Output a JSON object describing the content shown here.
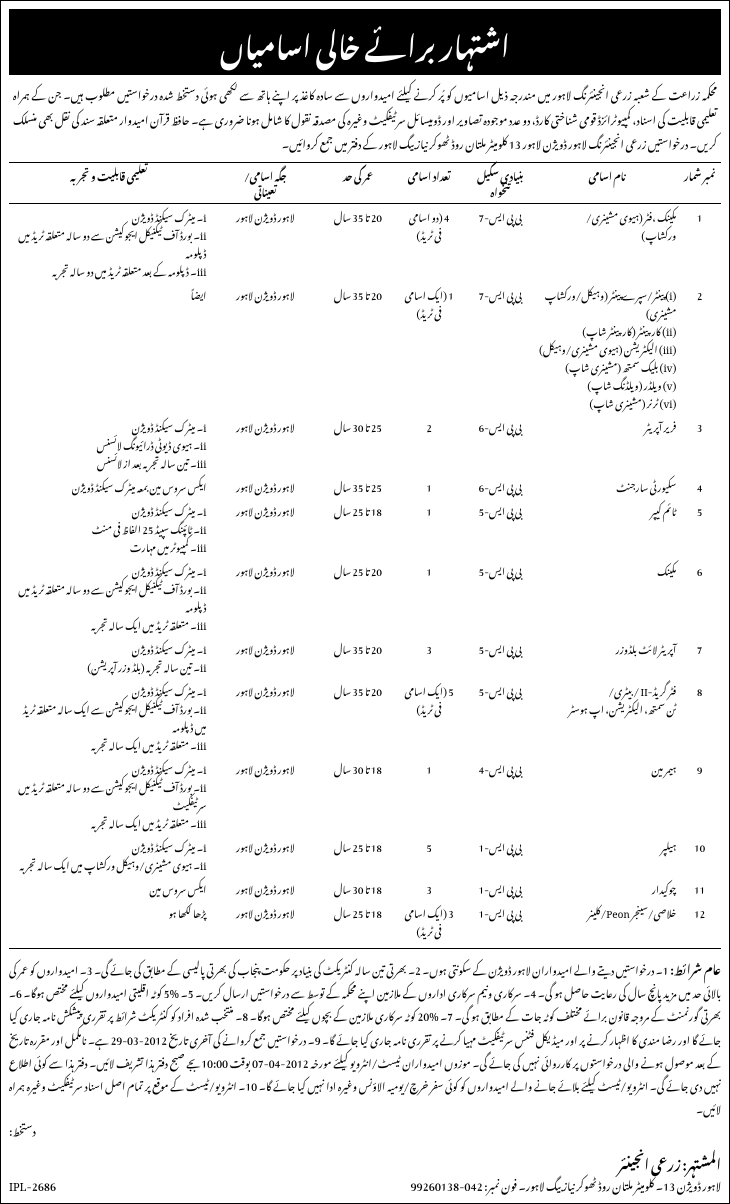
{
  "header_title": "اشتہار برائے خالی اسامیاں",
  "intro_text": "محکمہ زراعت کے شعبہ زرعی انجینئرنگ لاہور میں مندرجہ ذیل اسامیوں کو پُر کرنے کیلئے امیدواروں سے سادہ کاغذ پر اپنے ہاتھ سے لکھی ہوئی دستخط شدہ درخواستیں مطلوب ہیں۔ جن کے ہمراہ تعلیمی قابلیت کی اسناد، کمپیوٹرائزڈ قومی شناختی کارڈ، دو عدد موجودہ تصاویر اور ڈومیسائل سرٹیفکیٹ وغیرہ کی مصدقہ نقول کا شامل ہونا ضروری ہے۔ حافظ قرآن امیدوار متعلقہ سند کی نقل بھی منسلک کریں۔ درخواستیں زرعی انجینئرنگ لاہور ڈویژن لاہور 13 کلومیٹر ملتان روڈ ٹھوکر نیاز بیگ لاہور کے دفتر میں جمع کروائیں۔",
  "columns": {
    "sr": "نمبر شمار",
    "name": "نام اسامی",
    "scale": "بنیادی سکیل\nتنخواہ",
    "count": "تعداد اسامی",
    "age": "عمر کی حد",
    "place": "جگہ اسامی/\nتعیناتی",
    "qual": "تعلیمی قابلیت و تجربہ"
  },
  "rows": [
    {
      "sr": "1",
      "name": "مکینک ،فٹر (ہیوی مشینری/\nورکشاپ)",
      "scale": "بی پی ایس-7",
      "count": "4 (دو اسامی\nفی ٹریڈ)",
      "age": "20 تا 35 سال",
      "place": "لاہور ڈویژن لاہور",
      "qual": "i۔ میٹرک سیکنڈ ڈویژن\nii۔ بورڈ آف ٹیکنیکل ایجوکیشن سے دو سالہ متعلقہ ٹریڈ میں ڈپلومہ\niii۔ ڈپلومہ کے بعد متعلقہ ٹریڈ میں دو سالہ تجربہ"
    },
    {
      "sr": "2",
      "name": "(i) پینٹر/سپرے پینٹر (وہیکل/ورکشاپ مشینری)\n(ii) کارپینٹر (کارپینٹر شاپ)\n(iii) الیکٹریشن (ہیوی مشینری/وہیکل)\n(iv) بلیک سمتھ (مشینری شاپ)\n(v) ویلڈر (ویلڈنگ شاپ)\n(vi) ٹرنر (مشینری شاپ)",
      "scale": "بی پی ایس-7",
      "count": "1 (ایک اسامی\nفی ٹریڈ)",
      "age": "20 تا 35 سال",
      "place": "لاہور ڈویژن لاہور",
      "qual": "ایضاً"
    },
    {
      "sr": "3",
      "name": "فریر آپریٹر",
      "scale": "بی پی ایس-6",
      "count": "2",
      "age": "25 تا 30 سال",
      "place": "لاہور ڈویژن لاہور",
      "qual": "i۔ میٹرک سیکنڈ ڈویژن\nii۔ ہیوی ڈیوٹی ڈرائیونگ لائسنس\niii۔ تین سالہ تجربہ بعد از لائسنس"
    },
    {
      "sr": "4",
      "name": "سکیورٹی سارجنٹ",
      "scale": "بی پی ایس-6",
      "count": "1",
      "age": "25 تا 35 سال",
      "place": "لاہور ڈویژن لاہور",
      "qual": "ایکس سروس مین بمعہ میٹرک سیکنڈ ڈویژن"
    },
    {
      "sr": "5",
      "name": "ٹائم کیپر",
      "scale": "بی پی ایس-5",
      "count": "1",
      "age": "18 تا 25 سال",
      "place": "لاہور ڈویژن لاہور",
      "qual": "i۔ میٹرک سیکنڈ ڈویژن\nii۔ ٹائپنگ سپیڈ 25 الفاظ فی منٹ\niii۔ کمپیوٹر میں مہارت"
    },
    {
      "sr": "6",
      "name": "مکینک",
      "scale": "بی پی ایس-5",
      "count": "1",
      "age": "20 تا 25 سال",
      "place": "لاہور ڈویژن لاہور",
      "qual": "i۔ میٹرک سیکنڈ ڈویژن\nii۔ بورڈ آف ٹیکنیکل ایجوکیشن سے دو سالہ متعلقہ ٹریڈ میں ڈپلومہ\niii۔ متعلقہ ٹریڈ میں ایک سالہ تجربہ"
    },
    {
      "sr": "7",
      "name": "آپریٹر لائٹ بلڈوزر",
      "scale": "بی پی ایس-5",
      "count": "3",
      "age": "20 تا 35 سال",
      "place": "لاہور ڈویژن لاہور",
      "qual": "i۔ میٹرک سیکنڈ ڈویژن\nii۔ تین سالہ تجربہ (بلڈ وزر آپریشن)"
    },
    {
      "sr": "8",
      "name": "فٹر گریڈ-II / بیٹری/\nٹن سمتھ، الیکٹریشن، اپ ہوسٹر",
      "scale": "بی پی ایس-5",
      "count": "5 (ایک اسامی\nفی ٹریڈ)",
      "age": "20 تا 35 سال",
      "place": "لاہور ڈویژن لاہور",
      "qual": "i۔ میٹرک سیکنڈ ڈویژن\nii۔ بورڈ آف ٹیکنیکل ایجوکیشن سے ایک سالہ متعلقہ ٹریڈ میں ڈپلومہ\niii۔ متعلقہ ٹریڈ میں ایک سالہ تجربہ"
    },
    {
      "sr": "9",
      "name": "ہیمر مین",
      "scale": "بی پی ایس-4",
      "count": "1",
      "age": "18 تا 30 سال",
      "place": "لاہور ڈویژن لاہور",
      "qual": "i۔ میٹرک سیکنڈ ڈویژن\nii۔ بورڈ آف ٹیکنیکل ایجوکیشن سے دو سالہ متعلقہ ٹریڈ میں سرٹیفکیٹ\niii۔ متعلقہ ٹریڈ میں ایک سالہ تجربہ"
    },
    {
      "sr": "10",
      "name": "ہیلپر",
      "scale": "بی پی ایس-1",
      "count": "5",
      "age": "18 تا 25 سال",
      "place": "لاہور ڈویژن لاہور",
      "qual": "i۔ میٹرک سیکنڈ ڈویژن\nii۔ ہیوی مشینری/وہیکل ورکشاپ میں ایک سالہ تجربہ"
    },
    {
      "sr": "11",
      "name": "چوکیدار",
      "scale": "بی پی ایس-1",
      "count": "3",
      "age": "18 تا 30 سال",
      "place": "لاہور ڈویژن لاہور",
      "qual": "ایکس سروس مین"
    },
    {
      "sr": "12",
      "name": "خلاصی/سینجر Peon/کلینر",
      "scale": "بی پی ایس-1",
      "count": "3 (ایک اسامی\nفی ٹریڈ)",
      "age": "18 تا 25 سال",
      "place": "لاہور ڈویژن لاہور",
      "qual": "پڑھا لکھا ہو"
    }
  ],
  "conditions_label": "عام شرائط:",
  "conditions_text": "1۔ درخواستیں دیتے والے امیدواران لاہور ڈویژن کے سکونتی ہوں۔ 2۔ بھرتی تین سالہ کنٹریکٹ کی بنیاد پر حکومت پنجاب کی بھرتی پالیسی کے مطابق کی جائے گی۔ 3۔ امیدواروں کو عمر کی بالائی حد میں مزید پانچ سال کی رعایت حاصل ہو گی۔ 4۔ سرکاری ونیم سرکاری اداروں کے ملازمین اپنے محکمہ کے توسط سے درخواستیں ارسال کریں۔ 5۔ %5 کوٹہ اقلیتی امیدواروں کیلئے مختص ہوگا۔ 6۔ بھرتی گورنمنٹ کے مروجہ قانون برائے مختلف کوٹہ جات کے مطابق ہو گی۔ 7۔ %20 کوٹہ سرکاری ملازمین کے بچوں کیلئے مختص ہوگا۔ 8۔ منتخب شدہ افراد کو کنٹریکٹ شرائط پر تقرری پیشکش نامہ جاری کیا جائے گا اور رضا مندی کا اظہار کرنے پر اور میڈیکل فٹنس سرٹیفکیٹ مہیا کرنے پر تقرری نامہ جاری کیا جائے گا۔ 9۔ درخواستیں جمع کروانے کی آخری تاریخ 2012-03-29 ہے۔ نامکمل اور مقررہ تاریخ کے بعد موصول ہونے والی درخواستوں پر کارروائی نہیں کی جائے گی۔ موزوں امیدواران ٹیسٹ/انٹرویو کیلئے مورخہ 2012-04-07 بوقت 10:00بجے صبح دفتر ہذا تشریف لائیں۔ دفتر ہذا سے کوئی اطلاع نہیں دی جائے گی۔ انٹرویو/ٹیسٹ کیلئے بلائے جانے والے امیدواروں کو کوئی سفر خرچ/یومیہ الاؤنس وغیرہ ادا نہیں کیا جائے گا۔ 10۔ انٹرویو/ٹیسٹ کے موقع پر تمام اصل اسناد سرٹیفکیٹ وغیرہ ہمراہ لائیں۔",
  "signature": "دستخط:",
  "advertiser_label": "المشتہر:",
  "advertiser": "زرعی انجینئر",
  "address": "لاہور ڈویژن 13۔ کلومیٹر ملتان روڈ ٹھوکر نیاز بیگ لاہور۔ فون نمبر: 042-99260138",
  "ipl": "IPL-2686"
}
